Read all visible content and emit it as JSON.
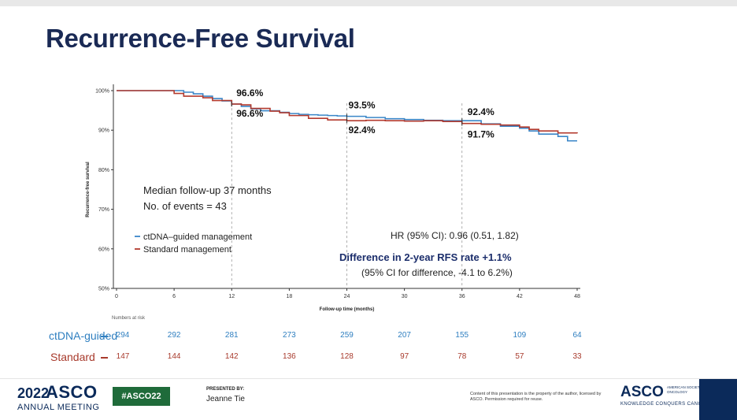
{
  "slide": {
    "title": "Recurrence-Free Survival"
  },
  "chart_data": {
    "type": "line",
    "subtype": "kaplan-meier",
    "xlabel": "Follow-up time (months)",
    "ylabel": "Recurrence-free survival",
    "xlim": [
      0,
      48
    ],
    "ylim": [
      50,
      100
    ],
    "x_ticks": [
      0,
      6,
      12,
      18,
      24,
      30,
      36,
      42,
      48
    ],
    "y_ticks": [
      50,
      60,
      70,
      80,
      90,
      100
    ],
    "y_tick_labels": [
      "50%",
      "60%",
      "70%",
      "80%",
      "90%",
      "100%"
    ],
    "grid": false,
    "legend_placement": "middle-left",
    "series": [
      {
        "name": "ctDNA–guided management",
        "color": "#3a86c8",
        "x": [
          0,
          2,
          3,
          4,
          6,
          7,
          8,
          9,
          10,
          11,
          12,
          13,
          14,
          15,
          17,
          18,
          19,
          20,
          21,
          22,
          23,
          24,
          26,
          28,
          30,
          32,
          34,
          36,
          38,
          40,
          42,
          43,
          44,
          46,
          47,
          48
        ],
        "y": [
          100,
          100,
          100,
          100,
          100,
          99.6,
          99.2,
          98.6,
          98.0,
          97.4,
          96.6,
          96.0,
          95.4,
          94.9,
          94.5,
          94.2,
          94.0,
          93.9,
          93.8,
          93.7,
          93.6,
          93.5,
          93.2,
          92.9,
          92.7,
          92.5,
          92.4,
          92.4,
          91.6,
          91.0,
          90.5,
          89.8,
          89.0,
          88.4,
          87.3,
          87.3
        ]
      },
      {
        "name": "Standard management",
        "color": "#b33a2e",
        "x": [
          0,
          2,
          4,
          5,
          6,
          7,
          9,
          10,
          12,
          13,
          14,
          16,
          17,
          18,
          20,
          22,
          24,
          26,
          28,
          30,
          32,
          34,
          36,
          38,
          40,
          42,
          43,
          44,
          46,
          48
        ],
        "y": [
          100,
          100,
          100,
          100,
          99.3,
          98.6,
          98.2,
          97.5,
          96.6,
          96.4,
          95.5,
          94.8,
          94.4,
          93.7,
          93.0,
          92.6,
          92.4,
          92.5,
          92.4,
          92.3,
          92.4,
          92.2,
          91.7,
          91.5,
          91.3,
          90.8,
          90.2,
          89.8,
          89.3,
          89.2
        ]
      }
    ],
    "annotations": [
      {
        "text": "96.6%",
        "x": 12,
        "y": 96.6,
        "series": "ctDNA–guided management"
      },
      {
        "text": "96.6%",
        "x": 12,
        "y": 96.6,
        "series": "Standard management"
      },
      {
        "text": "93.5%",
        "x": 24,
        "y": 93.5,
        "series": "ctDNA–guided management"
      },
      {
        "text": "92.4%",
        "x": 24,
        "y": 92.4,
        "series": "Standard management"
      },
      {
        "text": "92.4%",
        "x": 36,
        "y": 92.4,
        "series": "ctDNA–guided management"
      },
      {
        "text": "91.7%",
        "x": 36,
        "y": 91.7,
        "series": "Standard management"
      }
    ],
    "text_blocks": {
      "median_follow_up": "Median follow-up 37 months",
      "events": "No. of events = 43",
      "hr": "HR (95% CI): 0.96 (0.51, 1.82)",
      "difference": "Difference in 2-year RFS rate +1.1%",
      "difference_ci": "(95% CI for difference, -4.1 to 6.2%)"
    }
  },
  "risk_table": {
    "header": "Numbers at risk",
    "times": [
      0,
      6,
      12,
      18,
      24,
      30,
      36,
      42,
      48
    ],
    "rows": [
      {
        "label": "ctDNA-guided",
        "color": "#2f7fc0",
        "values": [
          294,
          292,
          281,
          273,
          259,
          207,
          155,
          109,
          64
        ]
      },
      {
        "label": "Standard",
        "color": "#a83a2c",
        "values": [
          147,
          144,
          142,
          136,
          128,
          97,
          78,
          57,
          33
        ]
      }
    ]
  },
  "footer": {
    "year": "2022",
    "asco": "ASCO",
    "meeting": "ANNUAL MEETING",
    "hashtag": "#ASCO22",
    "presented_by": "PRESENTED BY:",
    "presenter": "Jeanne Tie",
    "legal": "Content of this presentation is the property of the author, licensed by ASCO. Permission required for reuse.",
    "logo": "ASCO",
    "society": "AMERICAN SOCIETY OF CLINICAL ONCOLOGY",
    "tagline": "KNOWLEDGE CONQUERS CANCER"
  }
}
